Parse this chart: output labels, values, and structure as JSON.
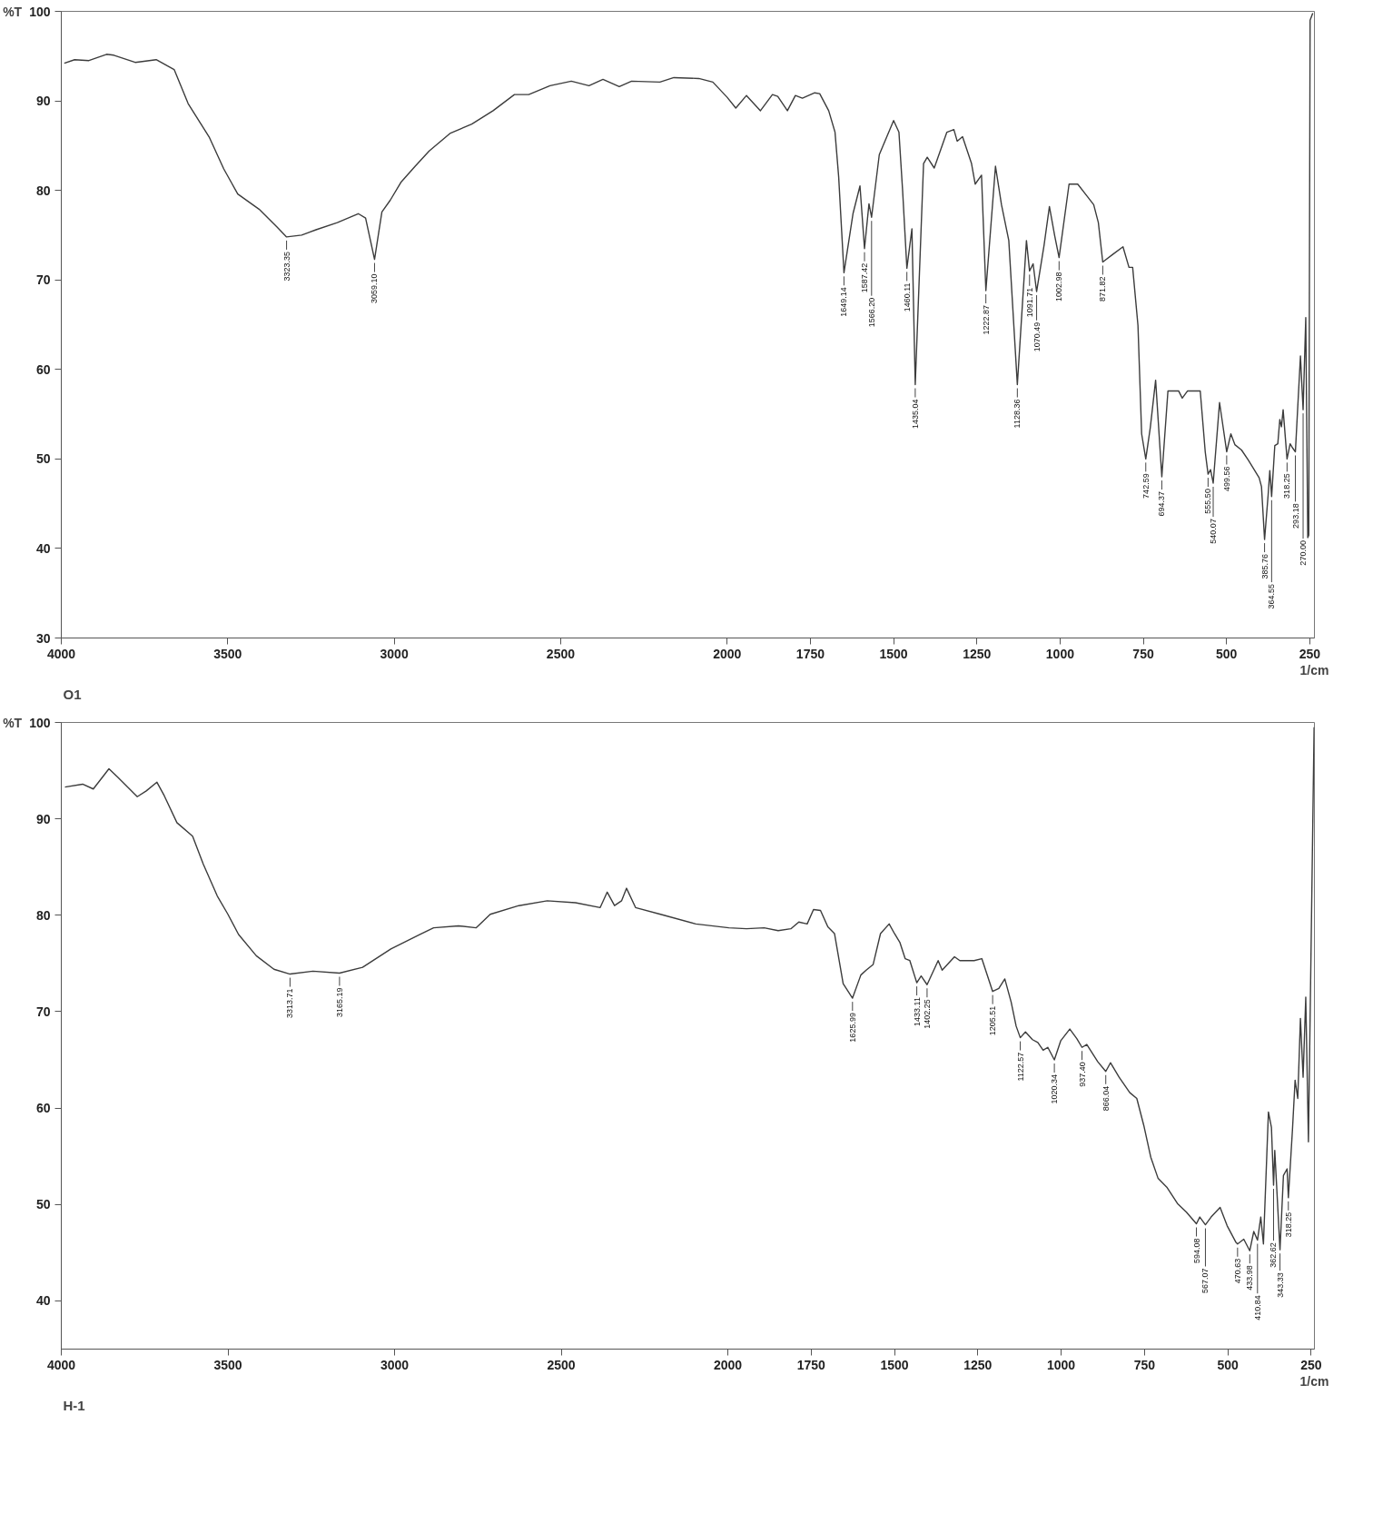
{
  "chart_data": [
    {
      "type": "line",
      "xlabel": "1/cm",
      "ylabel": "%T",
      "line_style": "solid",
      "xlim": [
        4000,
        236
      ],
      "ylim": [
        30,
        100
      ],
      "xticks": [
        4000,
        3500,
        3000,
        2500,
        2000,
        1750,
        1500,
        1250,
        1000,
        750,
        500,
        250
      ],
      "yticks": [
        30,
        40,
        50,
        60,
        70,
        80,
        90,
        100
      ],
      "x": [
        3991,
        3960,
        3917,
        3864,
        3842,
        3778,
        3715,
        3661,
        3619,
        3555,
        3512,
        3470,
        3406,
        3352,
        3323.35,
        3278,
        3235,
        3171,
        3108,
        3086,
        3059.1,
        3037,
        3012,
        2980,
        2937,
        2895,
        2831,
        2767,
        2703,
        2639,
        2596,
        2532,
        2468,
        2415,
        2373,
        2324,
        2287,
        2202,
        2160,
        2085,
        2043,
        2000,
        1974,
        1942,
        1900,
        1864,
        1848,
        1819,
        1795,
        1774,
        1737,
        1722,
        1695,
        1676,
        1665,
        1649.14,
        1622,
        1601,
        1587.42,
        1574,
        1566.2,
        1543,
        1500,
        1484,
        1473,
        1460.11,
        1445,
        1435.04,
        1410,
        1399,
        1378,
        1340,
        1319,
        1309,
        1293,
        1266,
        1255,
        1236,
        1222.87,
        1194,
        1176,
        1154,
        1128.36,
        1101,
        1091.71,
        1081,
        1070.49,
        1048,
        1032,
        1016,
        1002.98,
        973,
        947,
        926,
        899,
        885,
        871.82,
        840,
        811,
        793,
        782,
        766,
        755,
        742.59,
        729,
        713,
        694.37,
        676,
        644,
        633,
        617,
        579,
        564,
        555.5,
        548,
        540.07,
        521,
        499.56,
        487,
        475,
        455,
        435,
        402,
        395,
        385.76,
        375,
        370,
        364.55,
        355,
        346,
        340,
        335,
        330,
        318.25,
        309,
        301,
        293.18,
        278,
        270,
        262,
        256,
        253,
        249,
        241
      ],
      "series": [
        {
          "color": "#3c3c3c",
          "values": [
            94.2,
            94.6,
            94.5,
            95.2,
            95.1,
            94.3,
            94.6,
            93.5,
            89.7,
            85.9,
            82.4,
            79.6,
            77.9,
            75.9,
            74.8,
            75.0,
            75.6,
            76.4,
            77.4,
            76.9,
            72.3,
            77.6,
            78.9,
            80.9,
            82.7,
            84.4,
            86.4,
            87.4,
            88.9,
            90.7,
            90.7,
            91.7,
            92.2,
            91.7,
            92.4,
            91.6,
            92.2,
            92.1,
            92.6,
            92.5,
            92.1,
            90.4,
            89.2,
            90.6,
            88.9,
            90.7,
            90.5,
            88.9,
            90.6,
            90.3,
            90.9,
            90.8,
            88.9,
            86.5,
            81.5,
            70.8,
            77.4,
            80.5,
            73.5,
            78.5,
            77.0,
            84.0,
            87.8,
            86.5,
            80.0,
            71.3,
            75.7,
            58.3,
            83.0,
            83.7,
            82.5,
            86.5,
            86.8,
            85.5,
            86.0,
            83.0,
            80.7,
            81.7,
            68.8,
            82.7,
            78.4,
            74.4,
            58.3,
            74.4,
            71.0,
            71.8,
            68.7,
            73.9,
            78.2,
            74.9,
            72.5,
            80.7,
            80.7,
            79.7,
            78.4,
            76.4,
            72.0,
            72.9,
            73.7,
            71.4,
            71.4,
            64.9,
            52.8,
            50.0,
            53.5,
            58.8,
            48.0,
            57.6,
            57.6,
            56.8,
            57.6,
            57.6,
            50.8,
            48.3,
            48.8,
            47.3,
            56.3,
            50.8,
            52.8,
            51.6,
            51.0,
            49.9,
            47.9,
            46.9,
            41.0,
            46.0,
            48.7,
            45.8,
            51.5,
            51.7,
            54.4,
            53.6,
            55.5,
            50.0,
            51.7,
            51.2,
            50.8,
            61.5,
            55.5,
            65.8,
            41.2,
            41.5,
            99.0,
            99.8
          ]
        }
      ],
      "annotations": [
        "O1",
        {
          "text": "3323.35",
          "x": 3323.35,
          "y": 74.8
        },
        {
          "text": "3059.10",
          "x": 3059.1,
          "y": 72.3
        },
        {
          "text": "1649.14",
          "x": 1649.14,
          "y": 70.8
        },
        {
          "text": "1587.42",
          "x": 1587.42,
          "y": 73.5
        },
        {
          "text": "1566.20",
          "x": 1566.2,
          "y": 77.0
        },
        {
          "text": "1460.11",
          "x": 1460.11,
          "y": 71.3
        },
        {
          "text": "1435.04",
          "x": 1435.04,
          "y": 58.3
        },
        {
          "text": "1222.87",
          "x": 1222.87,
          "y": 68.8
        },
        {
          "text": "1128.36",
          "x": 1128.36,
          "y": 58.3
        },
        {
          "text": "1091.71",
          "x": 1091.71,
          "y": 71.0
        },
        {
          "text": "1070.49",
          "x": 1070.49,
          "y": 68.7
        },
        {
          "text": "1002.98",
          "x": 1002.98,
          "y": 72.5
        },
        {
          "text": "871.82",
          "x": 871.82,
          "y": 72.0
        },
        {
          "text": "742.59",
          "x": 742.59,
          "y": 50.0
        },
        {
          "text": "694.37",
          "x": 694.37,
          "y": 48.0
        },
        {
          "text": "555.50",
          "x": 555.5,
          "y": 48.3
        },
        {
          "text": "540.07",
          "x": 540.07,
          "y": 47.3
        },
        {
          "text": "499.56",
          "x": 499.56,
          "y": 50.8
        },
        {
          "text": "385.76",
          "x": 385.76,
          "y": 41.0
        },
        {
          "text": "364.55",
          "x": 364.55,
          "y": 45.8
        },
        {
          "text": "318.25",
          "x": 318.25,
          "y": 50.0
        },
        {
          "text": "293.18",
          "x": 293.18,
          "y": 50.8
        },
        {
          "text": "270.00",
          "x": 270.0,
          "y": 55.5
        }
      ]
    },
    {
      "type": "line",
      "xlabel": "1/cm",
      "ylabel": "%T",
      "line_style": "solid",
      "xlim": [
        4000,
        240
      ],
      "ylim": [
        35,
        100
      ],
      "xticks": [
        4000,
        3500,
        3000,
        2500,
        2000,
        1750,
        1500,
        1250,
        1000,
        750,
        500,
        250
      ],
      "yticks": [
        40,
        50,
        60,
        70,
        80,
        90,
        100
      ],
      "x": [
        3989,
        3936,
        3904,
        3857,
        3830,
        3772,
        3745,
        3713,
        3691,
        3653,
        3606,
        3574,
        3532,
        3500,
        3468,
        3415,
        3362,
        3313.71,
        3245,
        3165.19,
        3096,
        3011,
        2925,
        2883,
        2808,
        2755,
        2713,
        2627,
        2542,
        2457,
        2383,
        2362,
        2340,
        2319,
        2304,
        2277,
        2202,
        2096,
        1997,
        1944,
        1891,
        1849,
        1811,
        1787,
        1762,
        1743,
        1722,
        1700,
        1680,
        1654,
        1625.99,
        1601,
        1585,
        1564,
        1542,
        1516,
        1500,
        1484,
        1468,
        1454,
        1433.11,
        1420,
        1402.25,
        1369,
        1357,
        1320,
        1304,
        1261,
        1238,
        1205.51,
        1187,
        1169,
        1150,
        1135,
        1122.57,
        1107,
        1086,
        1070,
        1054,
        1040,
        1020.34,
        1001,
        974,
        953,
        937.4,
        923,
        890,
        866.04,
        852,
        826,
        794,
        773,
        752,
        731,
        709,
        683,
        651,
        624,
        594.08,
        584,
        567.07,
        550,
        523,
        502,
        476,
        470.63,
        452,
        433.98,
        422,
        410.84,
        401,
        393,
        378,
        369,
        362.62,
        359,
        343.33,
        333,
        322,
        318.25,
        306,
        298,
        290,
        282,
        274,
        266,
        258,
        241
      ],
      "series": [
        {
          "color": "#3c3c3c",
          "values": [
            93.3,
            93.6,
            93.1,
            95.2,
            94.3,
            92.3,
            92.9,
            93.8,
            92.4,
            89.6,
            88.2,
            85.3,
            82.0,
            80.1,
            78.0,
            75.8,
            74.4,
            73.9,
            74.2,
            74.0,
            74.6,
            76.5,
            78.0,
            78.7,
            78.9,
            78.7,
            80.1,
            81.0,
            81.5,
            81.3,
            80.8,
            82.4,
            81.0,
            81.5,
            82.8,
            80.8,
            80.1,
            79.1,
            78.7,
            78.6,
            78.7,
            78.4,
            78.6,
            79.3,
            79.1,
            80.6,
            80.5,
            78.8,
            78.1,
            72.9,
            71.4,
            73.8,
            74.3,
            74.9,
            78.1,
            79.1,
            78.1,
            77.2,
            75.5,
            75.3,
            73.0,
            73.7,
            72.8,
            75.3,
            74.3,
            75.7,
            75.3,
            75.3,
            75.5,
            72.1,
            72.4,
            73.4,
            71.0,
            68.5,
            67.3,
            67.9,
            67.1,
            66.8,
            66.0,
            66.3,
            65.0,
            67.0,
            68.2,
            67.2,
            66.3,
            66.6,
            64.8,
            63.8,
            64.7,
            63.2,
            61.6,
            61.0,
            58.2,
            54.9,
            52.7,
            51.8,
            50.1,
            49.2,
            48.0,
            48.7,
            47.9,
            48.7,
            49.7,
            47.8,
            46.1,
            45.9,
            46.4,
            45.2,
            47.2,
            46.3,
            48.7,
            45.9,
            59.6,
            58.0,
            52.0,
            55.6,
            45.3,
            53.0,
            53.7,
            50.7,
            57.7,
            62.9,
            61.0,
            69.3,
            63.2,
            71.5,
            56.5,
            99.5
          ]
        }
      ],
      "annotations": [
        "H-1",
        {
          "text": "3313.71",
          "x": 3313.71,
          "y": 73.9
        },
        {
          "text": "3165.19",
          "x": 3165.19,
          "y": 74.0
        },
        {
          "text": "1625.99",
          "x": 1625.99,
          "y": 71.4
        },
        {
          "text": "1433.11",
          "x": 1433.11,
          "y": 73.0
        },
        {
          "text": "1402.25",
          "x": 1402.25,
          "y": 72.8
        },
        {
          "text": "1205.51",
          "x": 1205.51,
          "y": 72.1
        },
        {
          "text": "1122.57",
          "x": 1122.57,
          "y": 67.3
        },
        {
          "text": "1020.34",
          "x": 1020.34,
          "y": 65.0
        },
        {
          "text": "937.40",
          "x": 937.4,
          "y": 66.3
        },
        {
          "text": "866.04",
          "x": 866.04,
          "y": 63.8
        },
        {
          "text": "594.08",
          "x": 594.08,
          "y": 48.0
        },
        {
          "text": "567.07",
          "x": 567.07,
          "y": 47.9
        },
        {
          "text": "470.63",
          "x": 470.63,
          "y": 45.9
        },
        {
          "text": "433.98",
          "x": 433.98,
          "y": 45.2
        },
        {
          "text": "410.84",
          "x": 410.84,
          "y": 46.3
        },
        {
          "text": "362.62",
          "x": 362.62,
          "y": 52.0
        },
        {
          "text": "343.33",
          "x": 343.33,
          "y": 45.3
        },
        {
          "text": "318.25",
          "x": 318.25,
          "y": 50.7
        }
      ]
    }
  ]
}
